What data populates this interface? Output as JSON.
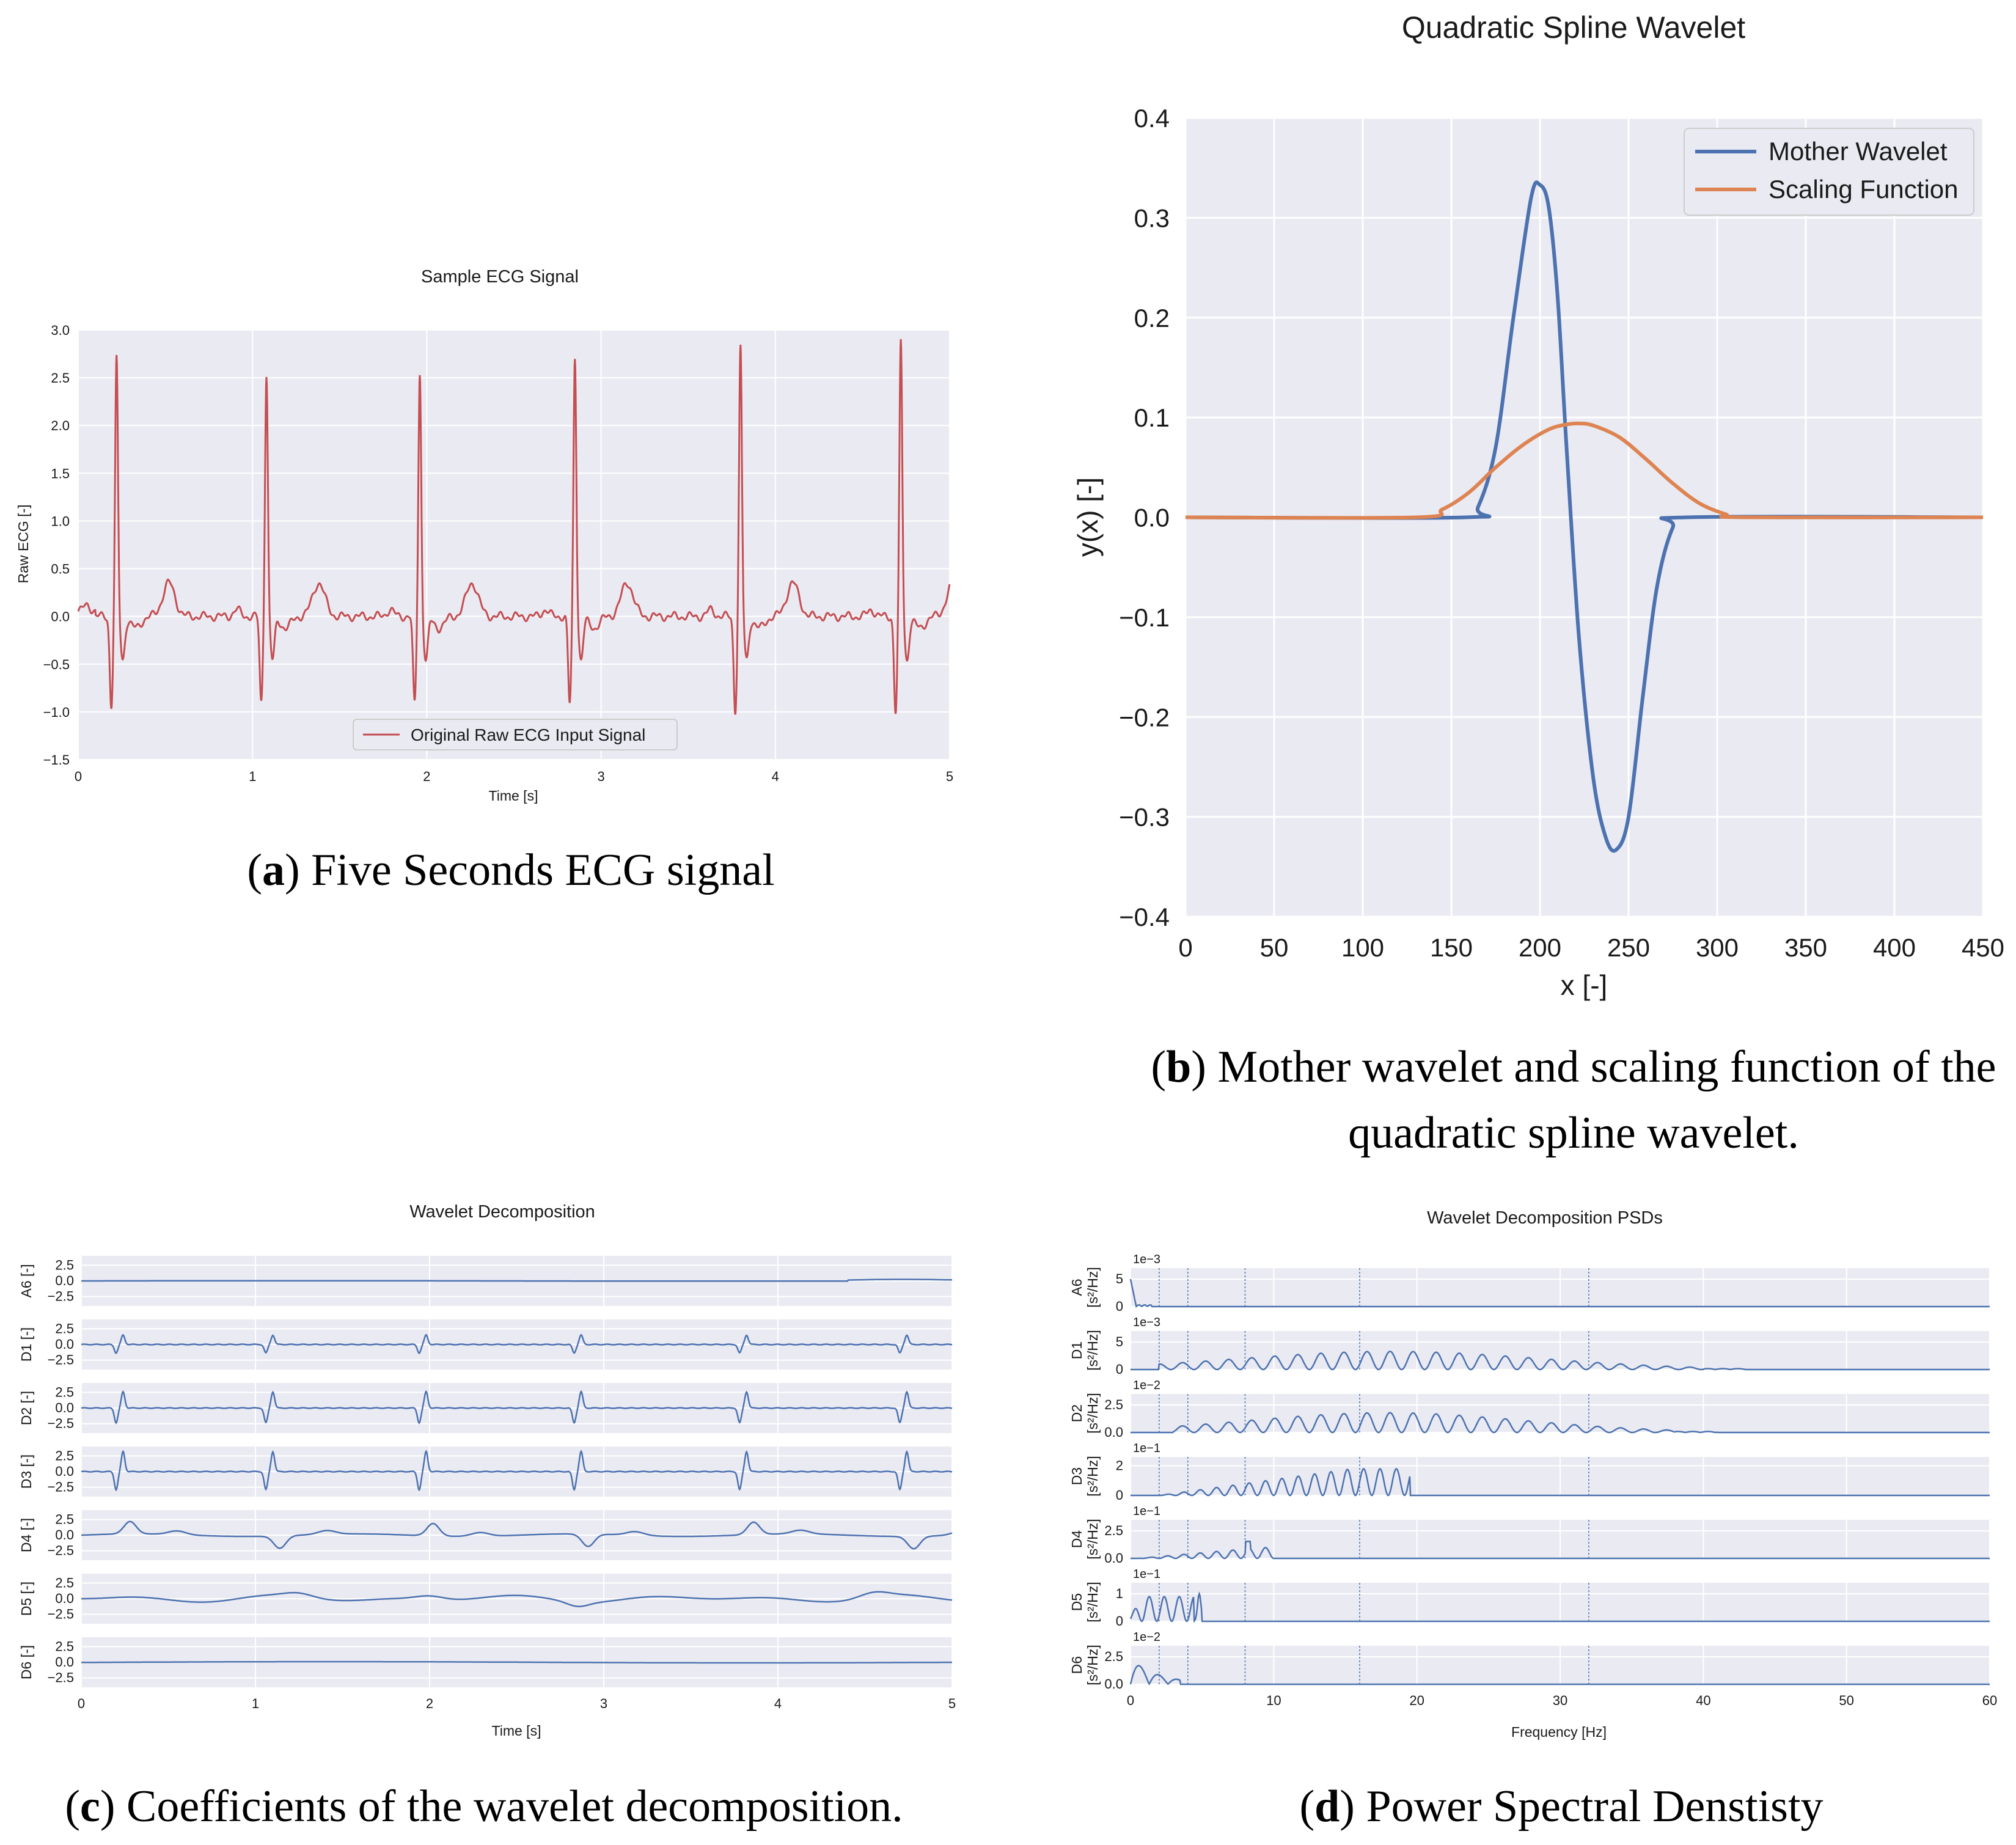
{
  "colors": {
    "plot_bg": "#eaeaf2",
    "grid": "#ffffff",
    "blue": "#4c72b0",
    "orange": "#dd8452",
    "red": "#c44e52"
  },
  "captions": {
    "a": {
      "label": "a",
      "text": "Five Seconds ECG signal"
    },
    "b": {
      "label": "b",
      "text1": "Mother wavelet and scaling function of the",
      "text2": "quadratic spline wavelet."
    },
    "c": {
      "label": "c",
      "text": "Coefficients of the wavelet decomposition."
    },
    "d": {
      "label": "d",
      "text": "Power Spectral Denstisty"
    }
  },
  "chart_data": [
    {
      "id": "ecg",
      "type": "line",
      "title": "Sample ECG Signal",
      "xlabel": "Time [s]",
      "ylabel": "Raw ECG [-]",
      "xlim": [
        0,
        5
      ],
      "ylim": [
        -1.5,
        3.0
      ],
      "xticks": [
        "0",
        "1",
        "2",
        "3",
        "4",
        "5"
      ],
      "yticks": [
        "3.0",
        "2.5",
        "2.0",
        "1.5",
        "1.0",
        "0.5",
        "0.0",
        "−0.5",
        "−1.0",
        "−1.5"
      ],
      "legend": "bottom-center",
      "grid": true,
      "series": [
        {
          "name": "Original Raw ECG Input Signal",
          "color": "#c44e52",
          "beats": [
            {
              "t": 0.22,
              "peak": 2.7,
              "trough": -1.05
            },
            {
              "t": 1.08,
              "peak": 2.55,
              "trough": -1.0
            },
            {
              "t": 1.96,
              "peak": 2.55,
              "trough": -1.02
            },
            {
              "t": 2.85,
              "peak": 2.72,
              "trough": -1.02
            },
            {
              "t": 3.8,
              "peak": 2.82,
              "trough": -1.1
            },
            {
              "t": 4.72,
              "peak": 2.88,
              "trough": -1.12
            }
          ]
        }
      ]
    },
    {
      "id": "wavelet",
      "type": "line",
      "title": "Quadratic Spline Wavelet",
      "xlabel": "x [-]",
      "ylabel": "y(x) [-]",
      "xlim": [
        0,
        450
      ],
      "ylim": [
        -0.4,
        0.4
      ],
      "xticks": [
        "0",
        "50",
        "100",
        "150",
        "200",
        "250",
        "300",
        "350",
        "400",
        "450"
      ],
      "yticks": [
        "0.4",
        "0.3",
        "0.2",
        "0.1",
        "0.0",
        "−0.1",
        "−0.2",
        "−0.3",
        "−0.4"
      ],
      "legend": "top-right",
      "grid": true,
      "series": [
        {
          "name": "Mother Wavelet",
          "color": "#4c72b0",
          "x": [
            0,
            158,
            165,
            175,
            185,
            195,
            200,
            205,
            210,
            215,
            222,
            230,
            237,
            243,
            250,
            258,
            266,
            275,
            283,
            450
          ],
          "y": [
            0,
            0,
            0.01,
            0.07,
            0.2,
            0.32,
            0.333,
            0.31,
            0.22,
            0.07,
            -0.12,
            -0.26,
            -0.32,
            -0.333,
            -0.3,
            -0.18,
            -0.07,
            -0.01,
            0,
            0
          ]
        },
        {
          "name": "Scaling Function",
          "color": "#dd8452",
          "x": [
            0,
            130,
            145,
            160,
            175,
            190,
            205,
            215,
            222,
            230,
            245,
            260,
            275,
            290,
            305,
            315,
            450
          ],
          "y": [
            0,
            0,
            0.008,
            0.025,
            0.05,
            0.072,
            0.088,
            0.093,
            0.094,
            0.092,
            0.08,
            0.058,
            0.034,
            0.014,
            0.003,
            0,
            0
          ]
        }
      ]
    },
    {
      "id": "decomp",
      "type": "line",
      "title": "Wavelet Decomposition",
      "xlabel": "Time [s]",
      "xlim": [
        0,
        5
      ],
      "xticks": [
        "0",
        "1",
        "2",
        "3",
        "4",
        "5"
      ],
      "yticks": [
        "2.5",
        "0.0",
        "−2.5"
      ],
      "ylim": [
        -4,
        4
      ],
      "grid": true,
      "beat_times": [
        0.22,
        1.08,
        1.96,
        2.85,
        3.8,
        4.72
      ],
      "rows": [
        {
          "label": "A6 [-]",
          "kind": "flat",
          "amp": 0.1
        },
        {
          "label": "D1 [-]",
          "kind": "spike",
          "amp": 1.5
        },
        {
          "label": "D2 [-]",
          "kind": "spike",
          "amp": 2.6
        },
        {
          "label": "D3 [-]",
          "kind": "spike",
          "amp": 3.2
        },
        {
          "label": "D4 [-]",
          "kind": "wave",
          "amp": 2.2
        },
        {
          "label": "D5 [-]",
          "kind": "slow",
          "amp": 1.0
        },
        {
          "label": "D6 [-]",
          "kind": "flat",
          "amp": 0.3
        }
      ]
    },
    {
      "id": "psd",
      "type": "line",
      "title": "Wavelet Decomposition PSDs",
      "xlabel": "Frequency [Hz]",
      "xlim": [
        0,
        60
      ],
      "xticks": [
        "0",
        "10",
        "20",
        "30",
        "40",
        "50",
        "60"
      ],
      "vlines": [
        2,
        4,
        8,
        16,
        32
      ],
      "grid": true,
      "rows": [
        {
          "label": "A6",
          "unit": "[s²/Hz]",
          "offset": "1e−3",
          "yticks": [
            "5",
            "0"
          ],
          "ymax": 7,
          "band": [
            0,
            1
          ],
          "peak": 5
        },
        {
          "label": "D1",
          "unit": "[s²/Hz]",
          "offset": "1e−3",
          "yticks": [
            "5",
            "0"
          ],
          "ymax": 7,
          "band": [
            2,
            40
          ],
          "peak": 3.3
        },
        {
          "label": "D2",
          "unit": "[s²/Hz]",
          "offset": "1e−2",
          "yticks": [
            "2.5",
            "0.0"
          ],
          "ymax": 3.5,
          "band": [
            3,
            38
          ],
          "peak": 1.8
        },
        {
          "label": "D3",
          "unit": "[s²/Hz]",
          "offset": "1e−1",
          "yticks": [
            "2",
            "0"
          ],
          "ymax": 2.6,
          "band": [
            2,
            19.5
          ],
          "peak": 1.8
        },
        {
          "label": "D4",
          "unit": "[s²/Hz]",
          "offset": "1e−1",
          "yticks": [
            "2.5",
            "0.0"
          ],
          "ymax": 3.5,
          "band": [
            0.5,
            10
          ],
          "peak": 1.4
        },
        {
          "label": "D5",
          "unit": "[s²/Hz]",
          "offset": "1e−1",
          "yticks": [
            "1",
            "0"
          ],
          "ymax": 1.4,
          "band": [
            0,
            5
          ],
          "peak": 1.0
        },
        {
          "label": "D6",
          "unit": "[s²/Hz]",
          "offset": "1e−2",
          "yticks": [
            "2.5",
            "0.0"
          ],
          "ymax": 3.5,
          "band": [
            0,
            2.5
          ],
          "peak": 2.3
        }
      ]
    }
  ]
}
